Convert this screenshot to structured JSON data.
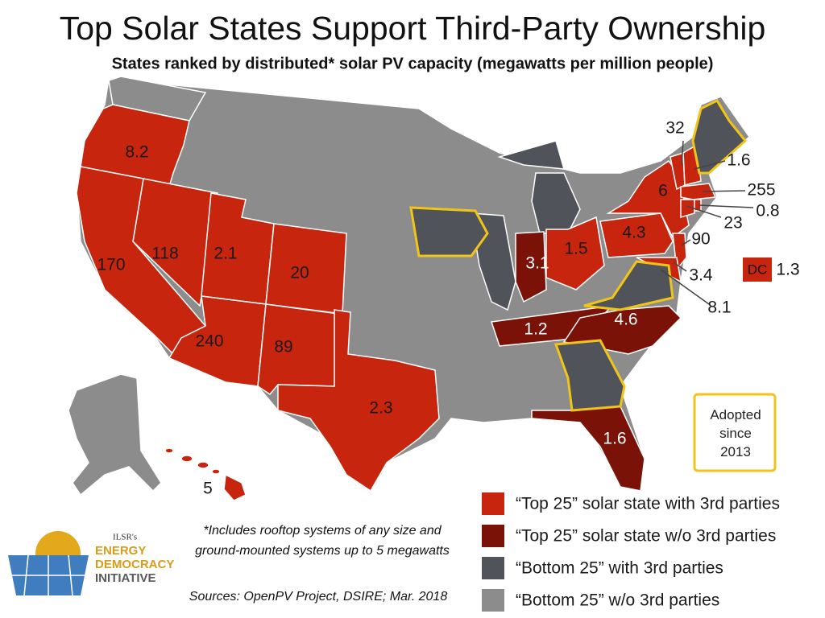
{
  "header": {
    "title": "Top Solar States Support Third-Party Ownership",
    "subtitle": "States ranked by distributed* solar PV capacity (megawatts per million people)"
  },
  "map_labels": [
    8.2,
    170,
    118,
    2.1,
    20,
    240,
    89,
    2.3,
    5,
    3.1,
    1.5,
    4.3,
    1.2,
    4.6,
    1.6,
    32,
    1.6,
    6,
    255,
    0.8,
    23,
    90,
    3.4,
    8.1
  ],
  "dc": {
    "label": "DC",
    "value": 1.3
  },
  "adopted_note": "Adopted since 2013",
  "legend": [
    "“Top 25” solar state with 3rd parties",
    "“Top 25” solar state w/o 3rd parties",
    "“Bottom 25” with 3rd parties",
    "“Bottom 25” w/o 3rd parties"
  ],
  "footnote": [
    "*Includes rooftop systems of any size and",
    "ground-mounted systems up to 5 megawatts"
  ],
  "sources": "Sources: OpenPV Project, DSIRE; Mar. 2018",
  "logo": {
    "prefix": "ILSR's",
    "lines": [
      "ENERGY",
      "DEMOCRACY",
      "INITIATIVE"
    ]
  }
}
